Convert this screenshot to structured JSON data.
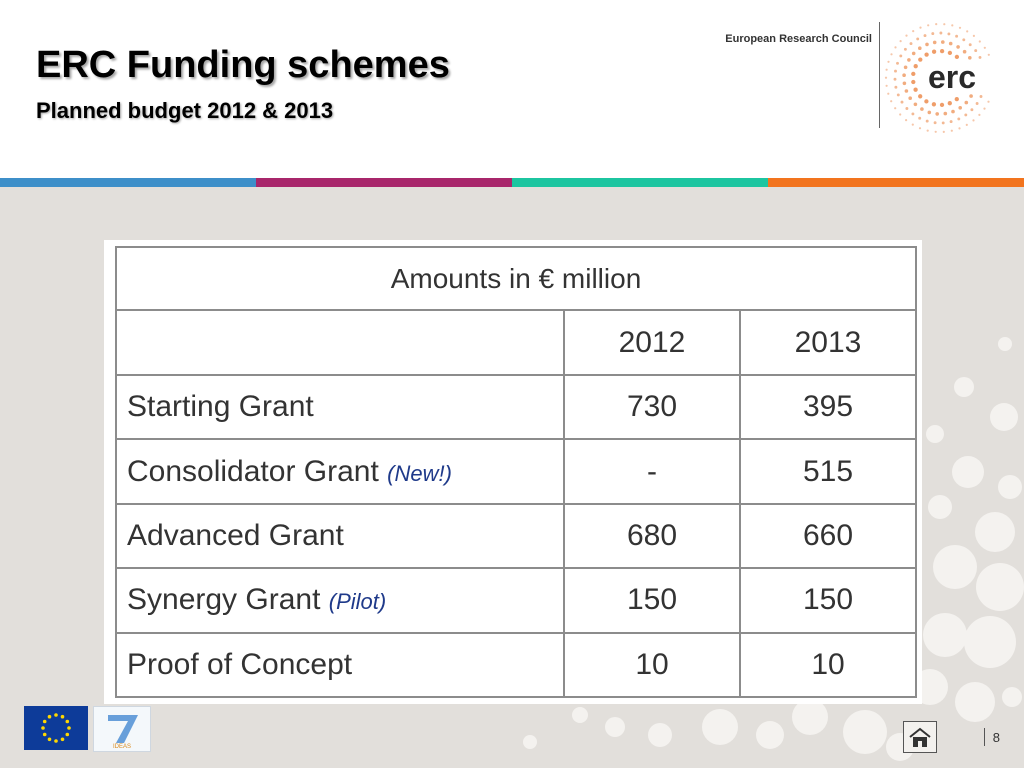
{
  "slide": {
    "title": "ERC Funding schemes",
    "subtitle": "Planned budget 2012 & 2013",
    "page_number": "8"
  },
  "branding": {
    "org_name": "European Research Council",
    "logo_text": "erc",
    "accent_orange": "#e8742a",
    "fp7_label": "IDEAS",
    "fp7_number": "7"
  },
  "stripes": [
    "#3d8fc9",
    "#a8266b",
    "#1cc5a0",
    "#f2741e"
  ],
  "table": {
    "caption": "Amounts in € million",
    "columns": [
      "2012",
      "2013"
    ],
    "rows": [
      {
        "label": "Starting Grant",
        "note": "",
        "v2012": "730",
        "v2013": "395"
      },
      {
        "label": "Consolidator Grant",
        "note": "(New!)",
        "v2012": "-",
        "v2013": "515"
      },
      {
        "label": "Advanced Grant",
        "note": "",
        "v2012": "680",
        "v2013": "660"
      },
      {
        "label": "Synergy Grant",
        "note": "(Pilot)",
        "v2012": "150",
        "v2013": "150"
      },
      {
        "label": "Proof of Concept",
        "note": "",
        "v2012": "10",
        "v2013": "10"
      }
    ]
  },
  "icons": {
    "home": "home-icon",
    "eu_flag": "eu-flag-icon",
    "fp7": "fp7-ideas-logo"
  }
}
